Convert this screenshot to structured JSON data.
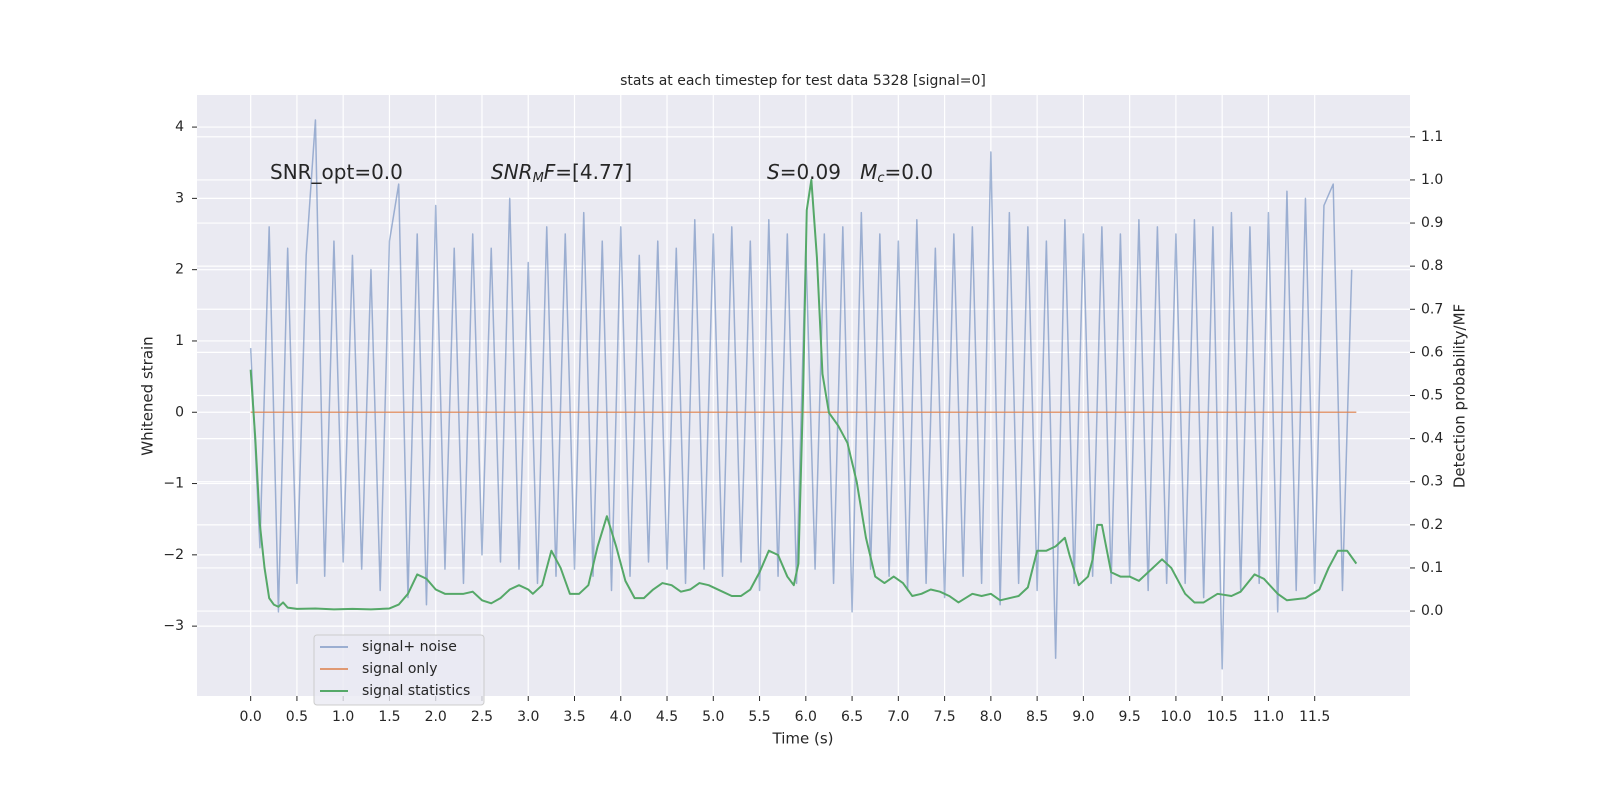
{
  "chart_data": {
    "type": "line",
    "title": "stats at each timestep for test data 5328 [signal=0]",
    "xlabel": "Time (s)",
    "ylabel": "Whitened strain",
    "y2label": "Detection probability/MF",
    "annotations": [
      [
        {
          "text": "SNR_opt=0.0",
          "style": "normal"
        }
      ],
      [
        {
          "text": "SNR",
          "style": "italic"
        },
        {
          "text": "M",
          "style": "sub"
        },
        {
          "text": "F",
          "style": "italic"
        },
        {
          "text": "=[4.77]",
          "style": "normal"
        }
      ],
      [
        {
          "text": "S",
          "style": "italic"
        },
        {
          "text": "=0.09   ",
          "style": "normal"
        },
        {
          "text": "M",
          "style": "italic"
        },
        {
          "text": "c",
          "style": "sub"
        },
        {
          "text": "=0.0",
          "style": "normal"
        }
      ]
    ],
    "xlim": [
      -0.58,
      12.53
    ],
    "ylim": [
      -3.98,
      4.45
    ],
    "y2lim": [
      -0.197,
      1.197
    ],
    "xticks": [
      {
        "value": 0,
        "label": "0.0"
      },
      {
        "value": 0.5,
        "label": "0.5"
      },
      {
        "value": 1,
        "label": "1.0"
      },
      {
        "value": 1.5,
        "label": "1.5"
      },
      {
        "value": 2,
        "label": "2.0"
      },
      {
        "value": 2.5,
        "label": "2.5"
      },
      {
        "value": 3,
        "label": "3.0"
      },
      {
        "value": 3.5,
        "label": "3.5"
      },
      {
        "value": 4,
        "label": "4.0"
      },
      {
        "value": 4.5,
        "label": "4.5"
      },
      {
        "value": 5,
        "label": "5.0"
      },
      {
        "value": 5.5,
        "label": "5.5"
      },
      {
        "value": 6,
        "label": "6.0"
      },
      {
        "value": 6.5,
        "label": "6.5"
      },
      {
        "value": 7,
        "label": "7.0"
      },
      {
        "value": 7.5,
        "label": "7.5"
      },
      {
        "value": 8,
        "label": "8.0"
      },
      {
        "value": 8.5,
        "label": "8.5"
      },
      {
        "value": 9,
        "label": "9.0"
      },
      {
        "value": 9.5,
        "label": "9.5"
      },
      {
        "value": 10,
        "label": "10.0"
      },
      {
        "value": 10.5,
        "label": "10.5"
      },
      {
        "value": 11,
        "label": "11.0"
      },
      {
        "value": 11.5,
        "label": "11.5"
      }
    ],
    "yticks": [
      {
        "value": -3,
        "label": "−3"
      },
      {
        "value": -2,
        "label": "−2"
      },
      {
        "value": -1,
        "label": "−1"
      },
      0,
      1,
      2,
      3,
      4
    ],
    "y2ticks": [
      {
        "value": 0,
        "label": "0.0"
      },
      {
        "value": 0.1,
        "label": "0.1"
      },
      {
        "value": 0.2,
        "label": "0.2"
      },
      {
        "value": 0.3,
        "label": "0.3"
      },
      {
        "value": 0.4,
        "label": "0.4"
      },
      {
        "value": 0.5,
        "label": "0.5"
      },
      {
        "value": 0.6,
        "label": "0.6"
      },
      {
        "value": 0.7,
        "label": "0.7"
      },
      {
        "value": 0.8,
        "label": "0.8"
      },
      {
        "value": 0.9,
        "label": "0.9"
      },
      {
        "value": 1,
        "label": "1.0"
      },
      {
        "value": 1.1,
        "label": "1.1"
      }
    ],
    "grid": true,
    "legend": "lower left",
    "series": [
      {
        "name": "signal+ noise",
        "color": "#4c72b0",
        "opacity": 0.5,
        "x": [
          0,
          0.1,
          0.2,
          0.3,
          0.4,
          0.5,
          0.6,
          0.7,
          0.8,
          0.9,
          1,
          1.1,
          1.2,
          1.3,
          1.4,
          1.5,
          1.6,
          1.7,
          1.8,
          1.9,
          2,
          2.1,
          2.2,
          2.3,
          2.4,
          2.5,
          2.6,
          2.7,
          2.8,
          2.9,
          3,
          3.1,
          3.2,
          3.3,
          3.4,
          3.5,
          3.6,
          3.7,
          3.8,
          3.9,
          4,
          4.1,
          4.2,
          4.3,
          4.4,
          4.5,
          4.6,
          4.7,
          4.8,
          4.9,
          5,
          5.1,
          5.2,
          5.3,
          5.4,
          5.5,
          5.6,
          5.7,
          5.8,
          5.9,
          6,
          6.1,
          6.2,
          6.3,
          6.4,
          6.5,
          6.6,
          6.7,
          6.8,
          6.9,
          7,
          7.1,
          7.2,
          7.3,
          7.4,
          7.5,
          7.6,
          7.7,
          7.8,
          7.9,
          8,
          8.1,
          8.2,
          8.3,
          8.4,
          8.5,
          8.6,
          8.7,
          8.8,
          8.9,
          9,
          9.1,
          9.2,
          9.3,
          9.4,
          9.5,
          9.6,
          9.7,
          9.8,
          9.9,
          10,
          10.1,
          10.2,
          10.3,
          10.4,
          10.5,
          10.6,
          10.7,
          10.8,
          10.9,
          11,
          11.1,
          11.2,
          11.3,
          11.4,
          11.5,
          11.6,
          11.7,
          11.8,
          11.9
        ],
        "values": [
          0.9,
          -1.9,
          2.6,
          -2.8,
          2.3,
          -2.4,
          2.2,
          4.1,
          -2.3,
          2.4,
          -2.1,
          2.2,
          -2.2,
          2.0,
          -2.5,
          2.4,
          3.2,
          -2.6,
          2.5,
          -2.7,
          2.9,
          -2.2,
          2.3,
          -2.4,
          2.5,
          -2.0,
          2.3,
          -2.1,
          3.0,
          -2.2,
          2.1,
          -2.4,
          2.6,
          -2.3,
          2.5,
          -2.2,
          2.8,
          -2.3,
          2.4,
          -2.5,
          2.6,
          -2.3,
          2.2,
          -2.1,
          2.4,
          -2.2,
          2.3,
          -2.4,
          2.7,
          -2.2,
          2.5,
          -2.3,
          2.6,
          -2.1,
          2.4,
          -2.5,
          2.7,
          -2.3,
          2.5,
          -2.4,
          2.3,
          -2.2,
          2.5,
          -2.4,
          2.6,
          -2.8,
          2.8,
          -2.2,
          2.5,
          -2.3,
          2.4,
          -2.5,
          2.7,
          -2.4,
          2.3,
          -2.6,
          2.5,
          -2.3,
          2.6,
          -2.4,
          3.65,
          -2.7,
          2.8,
          -2.4,
          2.6,
          -2.5,
          2.4,
          -3.45,
          2.7,
          -2.4,
          2.5,
          -2.3,
          2.6,
          -2.4,
          2.5,
          -2.3,
          2.7,
          -2.5,
          2.6,
          -2.4,
          2.5,
          -2.4,
          2.7,
          -2.6,
          2.6,
          -3.6,
          2.8,
          -2.5,
          2.6,
          -2.4,
          2.8,
          -2.8,
          3.1,
          -2.5,
          3.0,
          -2.4,
          2.9,
          3.2,
          -2.5,
          2.0
        ]
      },
      {
        "name": "signal only",
        "color": "#dd8452",
        "opacity": 0.8,
        "x": [
          0,
          11.95
        ],
        "values": [
          0,
          0
        ]
      },
      {
        "name": "signal statistics",
        "color": "#55a868",
        "opacity": 1,
        "axis": "y2",
        "x": [
          0,
          0.05,
          0.1,
          0.15,
          0.2,
          0.25,
          0.3,
          0.35,
          0.4,
          0.5,
          0.7,
          0.9,
          1.1,
          1.3,
          1.5,
          1.6,
          1.7,
          1.8,
          1.9,
          2,
          2.1,
          2.3,
          2.4,
          2.5,
          2.6,
          2.7,
          2.8,
          2.9,
          3,
          3.05,
          3.15,
          3.25,
          3.35,
          3.45,
          3.55,
          3.65,
          3.75,
          3.85,
          3.95,
          4.05,
          4.15,
          4.25,
          4.35,
          4.45,
          4.55,
          4.65,
          4.75,
          4.85,
          4.95,
          5.1,
          5.2,
          5.3,
          5.4,
          5.5,
          5.6,
          5.7,
          5.8,
          5.87,
          5.92,
          5.97,
          6.01,
          6.06,
          6.12,
          6.18,
          6.25,
          6.35,
          6.45,
          6.55,
          6.65,
          6.75,
          6.85,
          6.95,
          7.05,
          7.15,
          7.25,
          7.35,
          7.45,
          7.55,
          7.65,
          7.8,
          7.9,
          8,
          8.1,
          8.3,
          8.4,
          8.5,
          8.6,
          8.7,
          8.8,
          8.85,
          8.95,
          9.05,
          9.1,
          9.15,
          9.2,
          9.3,
          9.4,
          9.5,
          9.6,
          9.7,
          9.85,
          9.95,
          10.1,
          10.2,
          10.3,
          10.45,
          10.6,
          10.7,
          10.85,
          10.95,
          11.1,
          11.2,
          11.4,
          11.55,
          11.65,
          11.75,
          11.85,
          11.95
        ],
        "values": [
          0.56,
          0.4,
          0.2,
          0.1,
          0.03,
          0.015,
          0.01,
          0.02,
          0.008,
          0.005,
          0.006,
          0.004,
          0.005,
          0.004,
          0.006,
          0.015,
          0.04,
          0.085,
          0.075,
          0.05,
          0.04,
          0.04,
          0.045,
          0.025,
          0.018,
          0.03,
          0.05,
          0.06,
          0.05,
          0.04,
          0.06,
          0.14,
          0.1,
          0.04,
          0.04,
          0.06,
          0.15,
          0.22,
          0.15,
          0.07,
          0.03,
          0.03,
          0.05,
          0.065,
          0.06,
          0.045,
          0.05,
          0.065,
          0.06,
          0.045,
          0.035,
          0.035,
          0.05,
          0.09,
          0.14,
          0.13,
          0.08,
          0.06,
          0.11,
          0.5,
          0.93,
          1.0,
          0.82,
          0.55,
          0.46,
          0.43,
          0.39,
          0.3,
          0.17,
          0.08,
          0.065,
          0.08,
          0.065,
          0.035,
          0.04,
          0.05,
          0.045,
          0.035,
          0.02,
          0.04,
          0.035,
          0.04,
          0.025,
          0.035,
          0.055,
          0.14,
          0.14,
          0.15,
          0.17,
          0.13,
          0.06,
          0.08,
          0.12,
          0.2,
          0.2,
          0.09,
          0.08,
          0.08,
          0.07,
          0.09,
          0.12,
          0.1,
          0.04,
          0.02,
          0.02,
          0.04,
          0.035,
          0.045,
          0.085,
          0.075,
          0.04,
          0.025,
          0.03,
          0.05,
          0.1,
          0.14,
          0.14,
          0.11
        ]
      }
    ]
  }
}
